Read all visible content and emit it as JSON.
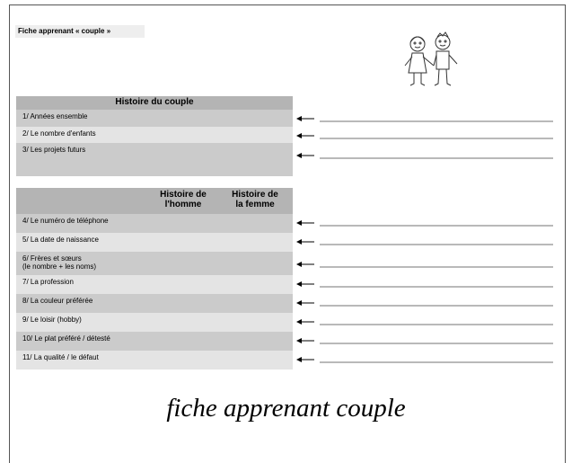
{
  "header": {
    "label": "Fiche apprenant « couple »"
  },
  "couple_table": {
    "title": "Histoire du couple",
    "rows": [
      "1/ Années ensemble",
      "2/ Le nombre d'enfants",
      "3/ Les projets futurs"
    ]
  },
  "profile_table": {
    "headers": [
      "Histoire de\nl'homme",
      "Histoire de\nla femme"
    ],
    "rows": [
      "4/ Le numéro de téléphone",
      "5/ La date de naissance",
      "6/ Frères et sœurs\n(le nombre + les noms)",
      "7/ La profession",
      "8/ La couleur préférée",
      "9/ Le loisir (hobby)",
      "10/ Le plat préféré / détesté",
      "11/ La qualité / le défaut"
    ]
  },
  "caption": "fiche apprenant couple"
}
